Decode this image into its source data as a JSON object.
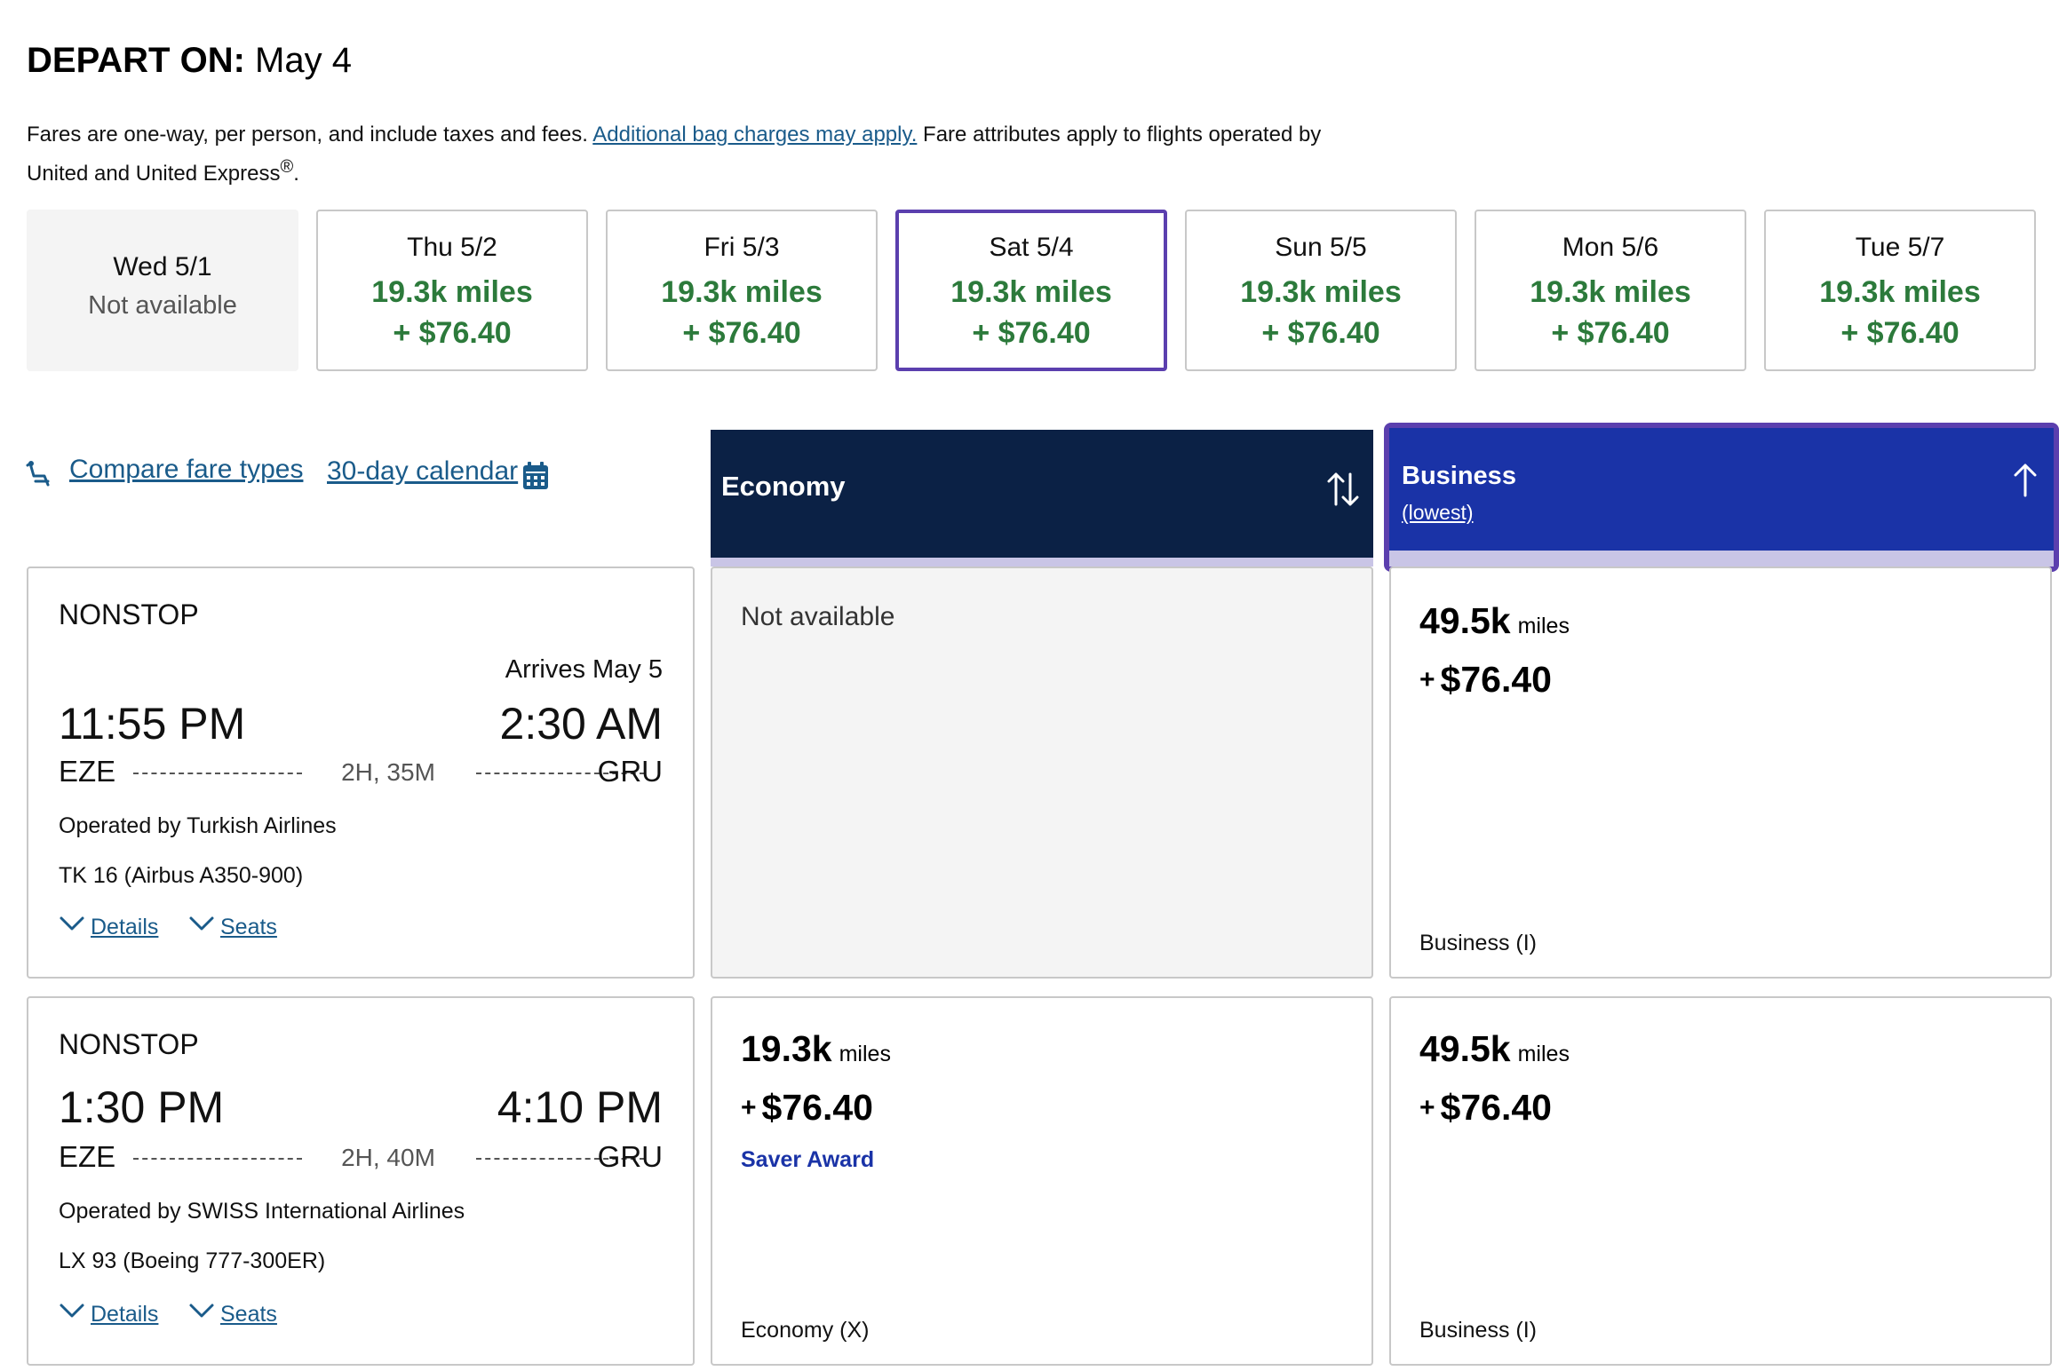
{
  "header": {
    "title_label": "DEPART ON:",
    "title_date": "May 4",
    "notice_text_1": "Fares are one-way, per person, and include taxes and fees.",
    "notice_link": "Additional bag charges may apply.",
    "notice_text_2": "Fare attributes apply to flights operated by United and United Express",
    "notice_reg": "®",
    "notice_end": "."
  },
  "dates": [
    {
      "day": "Wed 5/1",
      "status": "Not available"
    },
    {
      "day": "Thu 5/2",
      "miles": "19.3k miles",
      "price": "+ $76.40"
    },
    {
      "day": "Fri 5/3",
      "miles": "19.3k miles",
      "price": "+ $76.40"
    },
    {
      "day": "Sat 5/4",
      "miles": "19.3k miles",
      "price": "+ $76.40"
    },
    {
      "day": "Sun 5/5",
      "miles": "19.3k miles",
      "price": "+ $76.40"
    },
    {
      "day": "Mon 5/6",
      "miles": "19.3k miles",
      "price": "+ $76.40"
    },
    {
      "day": "Tue 5/7",
      "miles": "19.3k miles",
      "price": "+ $76.40"
    }
  ],
  "links": {
    "compare": "Compare fare types",
    "calendar": "30-day calendar"
  },
  "columns": {
    "economy": {
      "name": "Economy"
    },
    "business": {
      "name": "Business",
      "sub": "(lowest)"
    }
  },
  "flights": [
    {
      "stops": "NONSTOP",
      "arrives": "Arrives May 5",
      "dep_time": "11:55 PM",
      "arr_time": "2:30 AM",
      "origin": "EZE",
      "destination": "GRU",
      "duration": "2H, 35M",
      "operator": "Operated by Turkish Airlines",
      "equipment": "TK 16 (Airbus A350-900)",
      "details": "Details",
      "seats": "Seats",
      "economy": {
        "status": "Not available"
      },
      "business": {
        "miles": "49.5k",
        "unit": "miles",
        "plus": "+",
        "price": "$76.40",
        "class": "Business (I)"
      }
    },
    {
      "stops": "NONSTOP",
      "dep_time": "1:30 PM",
      "arr_time": "4:10 PM",
      "origin": "EZE",
      "destination": "GRU",
      "duration": "2H, 40M",
      "operator": "Operated by SWISS International Airlines",
      "equipment": "LX 93 (Boeing 777-300ER)",
      "details": "Details",
      "seats": "Seats",
      "economy": {
        "miles": "19.3k",
        "unit": "miles",
        "plus": "+",
        "price": "$76.40",
        "award": "Saver Award",
        "class": "Economy (X)"
      },
      "business": {
        "miles": "49.5k",
        "unit": "miles",
        "plus": "+",
        "price": "$76.40",
        "class": "Business (I)"
      }
    }
  ],
  "colors": {
    "navy": "#0b2145",
    "business_blue": "#1a33a7",
    "selected_purple": "#5b3fae",
    "price_green": "#2c7a3b",
    "link_blue": "#1a5b8a"
  }
}
